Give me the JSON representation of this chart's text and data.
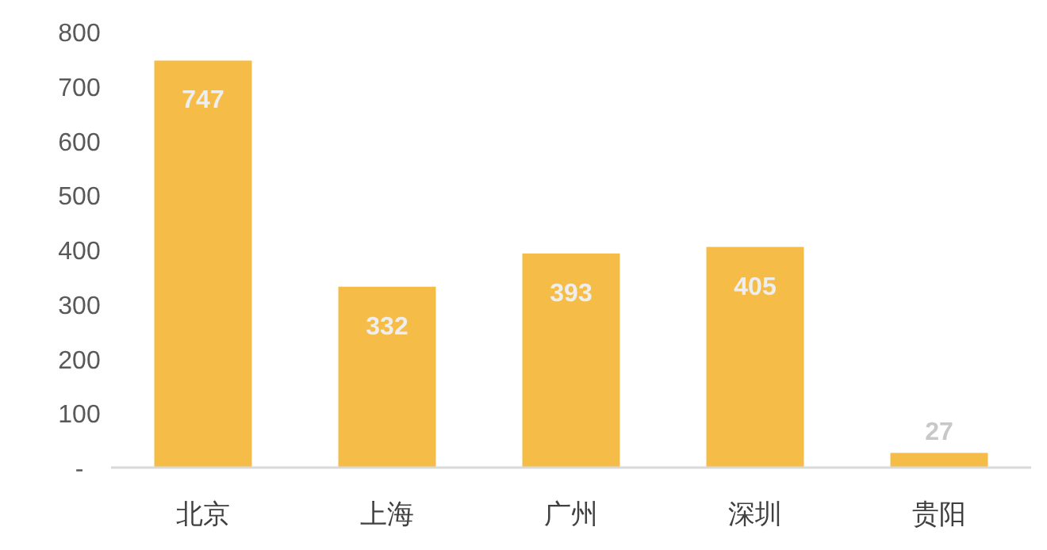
{
  "chart_data": {
    "type": "bar",
    "categories": [
      "北京",
      "上海",
      "广州",
      "深圳",
      "贵阳"
    ],
    "values": [
      747,
      332,
      393,
      405,
      27
    ],
    "color": "#f5bd48",
    "ylim": [
      0,
      800
    ],
    "yticks": [
      {
        "value": 0,
        "label": "-"
      },
      100,
      200,
      300,
      400,
      500,
      600,
      700,
      800
    ],
    "data_labels": true,
    "grid": false
  }
}
